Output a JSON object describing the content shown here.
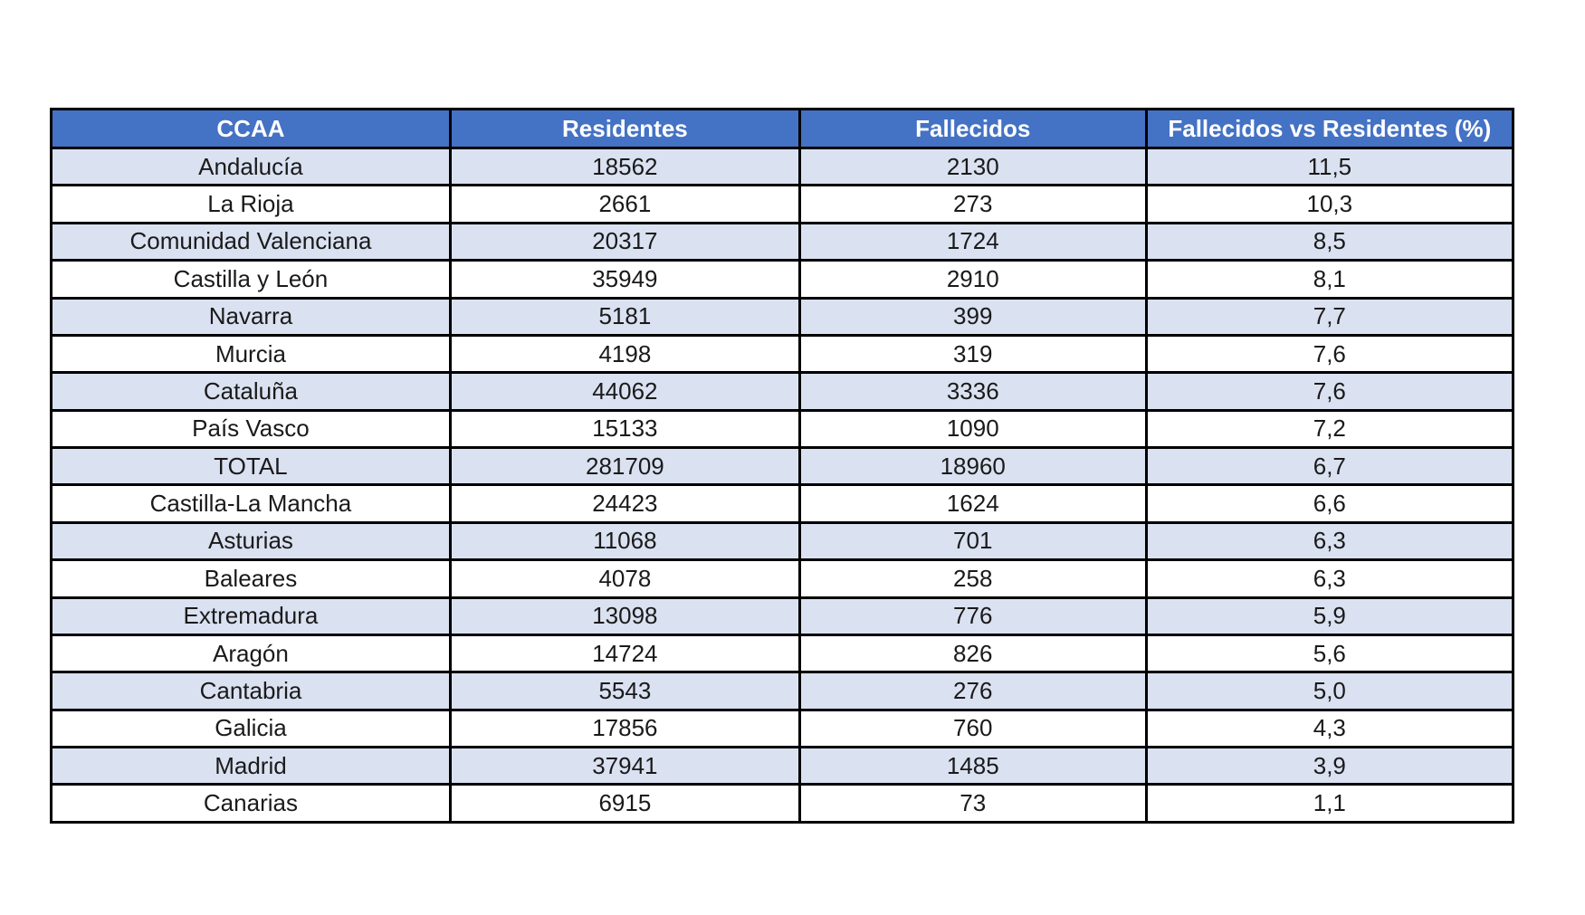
{
  "chart_data": {
    "type": "table",
    "columns": [
      "CCAA",
      "Residentes",
      "Fallecidos",
      "Fallecidos vs Residentes (%)"
    ],
    "rows": [
      [
        "Andalucía",
        "18562",
        "2130",
        "11,5"
      ],
      [
        "La Rioja",
        "2661",
        "273",
        "10,3"
      ],
      [
        "Comunidad Valenciana",
        "20317",
        "1724",
        "8,5"
      ],
      [
        "Castilla y León",
        "35949",
        "2910",
        "8,1"
      ],
      [
        "Navarra",
        "5181",
        "399",
        "7,7"
      ],
      [
        "Murcia",
        "4198",
        "319",
        "7,6"
      ],
      [
        "Cataluña",
        "44062",
        "3336",
        "7,6"
      ],
      [
        "País Vasco",
        "15133",
        "1090",
        "7,2"
      ],
      [
        "TOTAL",
        "281709",
        "18960",
        "6,7"
      ],
      [
        "Castilla-La Mancha",
        "24423",
        "1624",
        "6,6"
      ],
      [
        "Asturias",
        "11068",
        "701",
        "6,3"
      ],
      [
        "Baleares",
        "4078",
        "258",
        "6,3"
      ],
      [
        "Extremadura",
        "13098",
        "776",
        "5,9"
      ],
      [
        "Aragón",
        "14724",
        "826",
        "5,6"
      ],
      [
        "Cantabria",
        "5543",
        "276",
        "5,0"
      ],
      [
        "Galicia",
        "17856",
        "760",
        "4,3"
      ],
      [
        "Madrid",
        "37941",
        "1485",
        "3,9"
      ],
      [
        "Canarias",
        "6915",
        "73",
        "1,1"
      ]
    ],
    "legend": "none",
    "grid": "full black gridlines",
    "notes": "Percentages use comma decimal separator; TOTAL row appears mid-table sorted by percentage descending"
  },
  "colors": {
    "header_bg": "#4472C4",
    "header_text": "#FFFFFF",
    "row_bg": "#FFFFFF",
    "row_alt_bg": "#DAE1F1",
    "border": "#000000",
    "body_text": "#1A1A1A"
  }
}
